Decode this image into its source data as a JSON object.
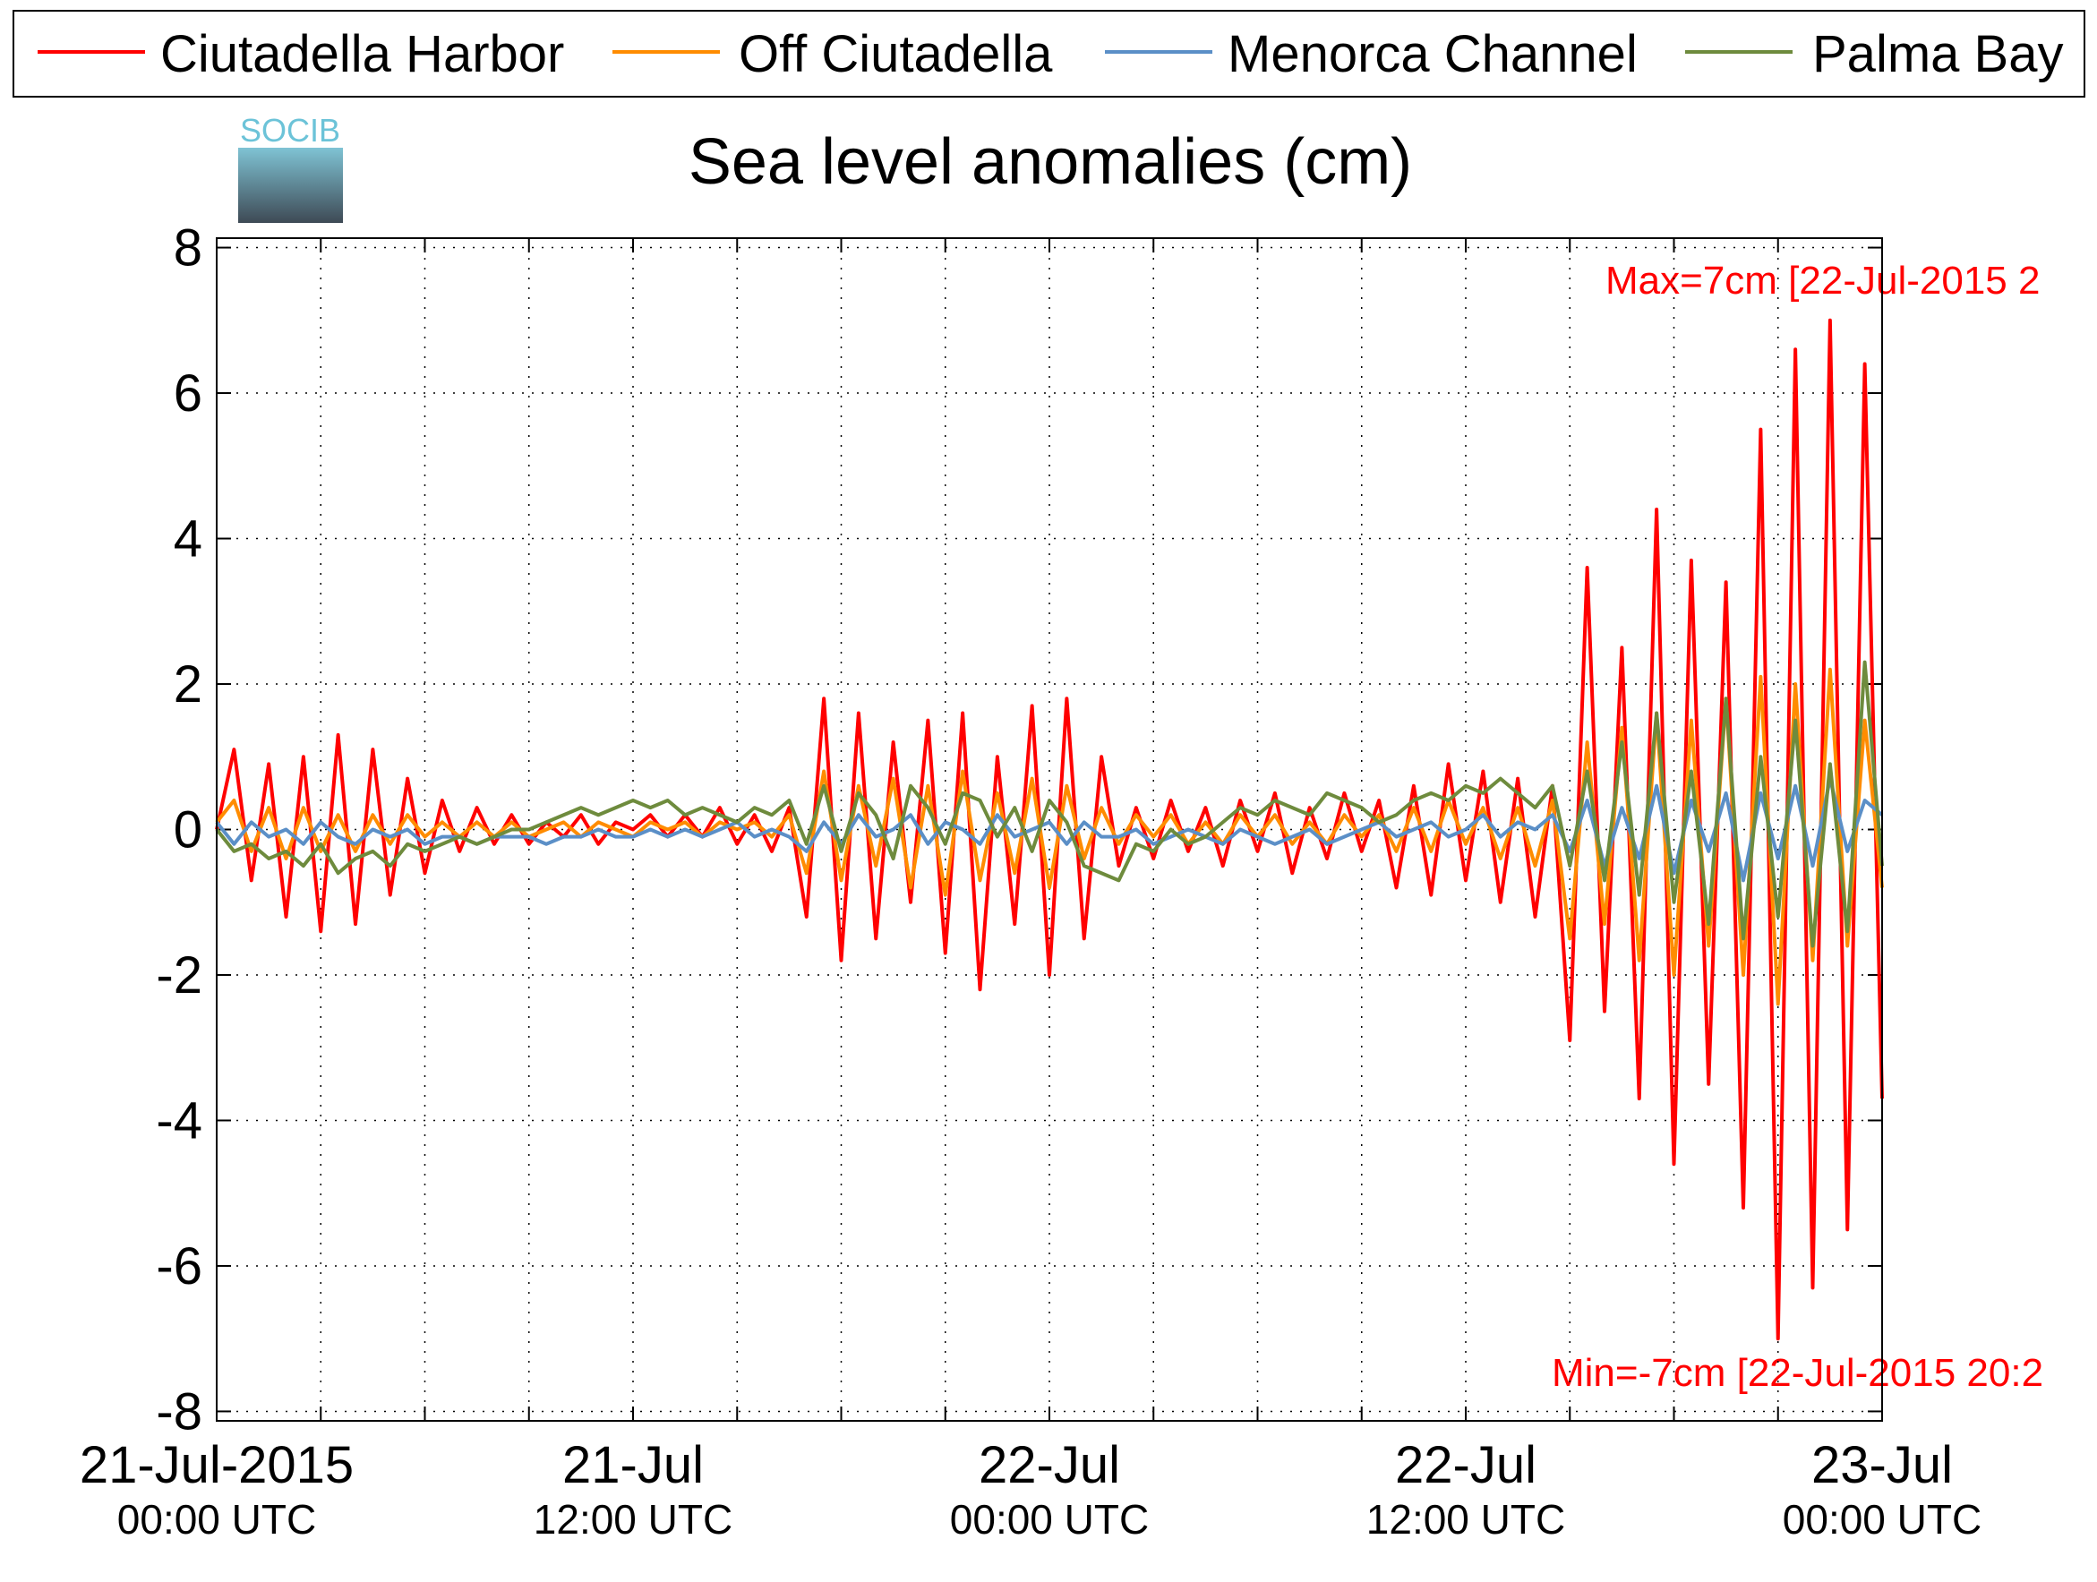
{
  "chart_data": {
    "type": "line",
    "title": "Sea level anomalies (cm)",
    "logo": "SOCIB",
    "annotations": [
      {
        "text": "Max=7cm [22-Jul-2015 2",
        "color": "#ff0000"
      },
      {
        "text": "Min=-7cm [22-Jul-2015 20:2",
        "color": "#ff0000"
      }
    ],
    "x": [
      "2015-07-21T00:00",
      "2015-07-21T00:30",
      "2015-07-21T01:00",
      "2015-07-21T01:30",
      "2015-07-21T02:00",
      "2015-07-21T02:30",
      "2015-07-21T03:00",
      "2015-07-21T03:30",
      "2015-07-21T04:00",
      "2015-07-21T04:30",
      "2015-07-21T05:00",
      "2015-07-21T05:30",
      "2015-07-21T06:00",
      "2015-07-21T06:30",
      "2015-07-21T07:00",
      "2015-07-21T07:30",
      "2015-07-21T08:00",
      "2015-07-21T08:30",
      "2015-07-21T09:00",
      "2015-07-21T09:30",
      "2015-07-21T10:00",
      "2015-07-21T10:30",
      "2015-07-21T11:00",
      "2015-07-21T11:30",
      "2015-07-21T12:00",
      "2015-07-21T12:30",
      "2015-07-21T13:00",
      "2015-07-21T13:30",
      "2015-07-21T14:00",
      "2015-07-21T14:30",
      "2015-07-21T15:00",
      "2015-07-21T15:30",
      "2015-07-21T16:00",
      "2015-07-21T16:30",
      "2015-07-21T17:00",
      "2015-07-21T17:30",
      "2015-07-21T18:00",
      "2015-07-21T18:30",
      "2015-07-21T19:00",
      "2015-07-21T19:30",
      "2015-07-21T20:00",
      "2015-07-21T20:30",
      "2015-07-21T21:00",
      "2015-07-21T21:30",
      "2015-07-21T22:00",
      "2015-07-21T22:30",
      "2015-07-21T23:00",
      "2015-07-21T23:30",
      "2015-07-22T00:00",
      "2015-07-22T00:30",
      "2015-07-22T01:00",
      "2015-07-22T01:30",
      "2015-07-22T02:00",
      "2015-07-22T02:30",
      "2015-07-22T03:00",
      "2015-07-22T03:30",
      "2015-07-22T04:00",
      "2015-07-22T04:30",
      "2015-07-22T05:00",
      "2015-07-22T05:30",
      "2015-07-22T06:00",
      "2015-07-22T06:30",
      "2015-07-22T07:00",
      "2015-07-22T07:30",
      "2015-07-22T08:00",
      "2015-07-22T08:30",
      "2015-07-22T09:00",
      "2015-07-22T09:30",
      "2015-07-22T10:00",
      "2015-07-22T10:30",
      "2015-07-22T11:00",
      "2015-07-22T11:30",
      "2015-07-22T12:00",
      "2015-07-22T12:30",
      "2015-07-22T13:00",
      "2015-07-22T13:30",
      "2015-07-22T14:00",
      "2015-07-22T14:30",
      "2015-07-22T15:00",
      "2015-07-22T15:30",
      "2015-07-22T16:00",
      "2015-07-22T16:30",
      "2015-07-22T17:00",
      "2015-07-22T17:30",
      "2015-07-22T18:00",
      "2015-07-22T18:30",
      "2015-07-22T19:00",
      "2015-07-22T19:30",
      "2015-07-22T20:00",
      "2015-07-22T20:30",
      "2015-07-22T21:00",
      "2015-07-22T21:30",
      "2015-07-22T22:00",
      "2015-07-22T22:30",
      "2015-07-22T23:00",
      "2015-07-22T23:30",
      "2015-07-23T00:00"
    ],
    "series": [
      {
        "name": "Ciutadella Harbor",
        "color": "#ff0000",
        "values": [
          0,
          1.1,
          -0.7,
          0.9,
          -1.2,
          1.0,
          -1.4,
          1.3,
          -1.3,
          1.1,
          -0.9,
          0.7,
          -0.6,
          0.4,
          -0.3,
          0.3,
          -0.2,
          0.2,
          -0.2,
          0.1,
          -0.1,
          0.2,
          -0.2,
          0.1,
          0,
          0.2,
          -0.1,
          0.2,
          -0.1,
          0.3,
          -0.2,
          0.2,
          -0.3,
          0.3,
          -1.2,
          1.8,
          -1.8,
          1.6,
          -1.5,
          1.2,
          -1.0,
          1.5,
          -1.7,
          1.6,
          -2.2,
          1.0,
          -1.3,
          1.7,
          -2.0,
          1.8,
          -1.5,
          1.0,
          -0.5,
          0.3,
          -0.4,
          0.4,
          -0.3,
          0.3,
          -0.5,
          0.4,
          -0.3,
          0.5,
          -0.6,
          0.3,
          -0.4,
          0.5,
          -0.3,
          0.4,
          -0.8,
          0.6,
          -0.9,
          0.9,
          -0.7,
          0.8,
          -1.0,
          0.7,
          -1.2,
          0.6,
          -2.9,
          3.6,
          -2.5,
          2.5,
          -3.7,
          4.4,
          -4.6,
          3.7,
          -3.5,
          3.4,
          -5.2,
          5.5,
          -7.0,
          6.6,
          -6.3,
          7.0,
          -5.5,
          6.4,
          -3.7
        ]
      },
      {
        "name": "Off Ciutadella",
        "color": "#ff8c00",
        "values": [
          0.1,
          0.4,
          -0.3,
          0.3,
          -0.4,
          0.3,
          -0.3,
          0.2,
          -0.3,
          0.2,
          -0.2,
          0.2,
          -0.1,
          0.1,
          -0.1,
          0.1,
          -0.1,
          0.1,
          -0.1,
          0,
          0.1,
          -0.1,
          0.1,
          0,
          -0.1,
          0.1,
          0,
          0.1,
          -0.1,
          0.1,
          0,
          0.1,
          -0.1,
          0.2,
          -0.6,
          0.8,
          -0.7,
          0.6,
          -0.5,
          0.7,
          -0.8,
          0.6,
          -0.9,
          0.8,
          -0.7,
          0.5,
          -0.6,
          0.7,
          -0.8,
          0.6,
          -0.4,
          0.3,
          -0.2,
          0.2,
          -0.1,
          0.2,
          -0.2,
          0.1,
          -0.2,
          0.2,
          -0.1,
          0.2,
          -0.2,
          0.1,
          -0.2,
          0.2,
          -0.1,
          0.2,
          -0.3,
          0.3,
          -0.3,
          0.4,
          -0.2,
          0.3,
          -0.4,
          0.3,
          -0.5,
          0.4,
          -1.5,
          1.2,
          -1.3,
          1.4,
          -1.8,
          1.6,
          -2.0,
          1.5,
          -1.6,
          1.8,
          -2.0,
          2.1,
          -2.4,
          2.0,
          -1.8,
          2.2,
          -1.6,
          1.5,
          -0.8
        ]
      },
      {
        "name": "Menorca Channel",
        "color": "#5b8fc7",
        "values": [
          0.1,
          -0.2,
          0.1,
          -0.1,
          0,
          -0.2,
          0.1,
          -0.1,
          -0.2,
          0,
          -0.1,
          0,
          -0.2,
          -0.1,
          -0.1,
          -0.2,
          -0.1,
          -0.1,
          -0.1,
          -0.2,
          -0.1,
          -0.1,
          0,
          -0.1,
          -0.1,
          0,
          -0.1,
          0,
          -0.1,
          0,
          0.1,
          -0.1,
          0,
          -0.1,
          -0.3,
          0.1,
          -0.2,
          0.2,
          -0.1,
          0,
          0.2,
          -0.2,
          0.1,
          0,
          -0.2,
          0.2,
          -0.1,
          0,
          0.1,
          -0.2,
          0.1,
          -0.1,
          -0.1,
          0,
          -0.2,
          -0.1,
          0,
          -0.1,
          -0.2,
          0,
          -0.1,
          -0.2,
          -0.1,
          0,
          -0.2,
          -0.1,
          0,
          0.1,
          -0.1,
          0,
          0.1,
          -0.1,
          0,
          0.2,
          -0.1,
          0.1,
          0,
          0.2,
          -0.3,
          0.4,
          -0.5,
          0.3,
          -0.4,
          0.6,
          -0.6,
          0.4,
          -0.3,
          0.5,
          -0.7,
          0.5,
          -0.4,
          0.6,
          -0.5,
          0.7,
          -0.3,
          0.4,
          0.2
        ]
      },
      {
        "name": "Palma Bay",
        "color": "#6e8b3d",
        "values": [
          0,
          -0.3,
          -0.2,
          -0.4,
          -0.3,
          -0.5,
          -0.2,
          -0.6,
          -0.4,
          -0.3,
          -0.5,
          -0.2,
          -0.3,
          -0.2,
          -0.1,
          -0.2,
          -0.1,
          0,
          0,
          0.1,
          0.2,
          0.3,
          0.2,
          0.3,
          0.4,
          0.3,
          0.4,
          0.2,
          0.3,
          0.2,
          0.1,
          0.3,
          0.2,
          0.4,
          -0.2,
          0.6,
          -0.3,
          0.5,
          0.2,
          -0.4,
          0.6,
          0.3,
          -0.2,
          0.5,
          0.4,
          -0.1,
          0.3,
          -0.3,
          0.4,
          0.1,
          -0.5,
          -0.6,
          -0.7,
          -0.2,
          -0.3,
          0,
          -0.2,
          -0.1,
          0.1,
          0.3,
          0.2,
          0.4,
          0.3,
          0.2,
          0.5,
          0.4,
          0.3,
          0.1,
          0.2,
          0.4,
          0.5,
          0.4,
          0.6,
          0.5,
          0.7,
          0.5,
          0.3,
          0.6,
          -0.5,
          0.8,
          -0.7,
          1.2,
          -0.9,
          1.6,
          -1.0,
          0.8,
          -1.3,
          1.8,
          -1.5,
          1.0,
          -1.2,
          1.5,
          -1.6,
          0.9,
          -1.4,
          2.3,
          -0.5
        ]
      }
    ],
    "xlim": [
      "2015-07-21T00:00",
      "2015-07-23T00:00"
    ],
    "xticks": [
      {
        "value": "2015-07-21T00:00",
        "label": [
          "21-Jul-2015",
          "00:00 UTC"
        ]
      },
      {
        "value": "2015-07-21T12:00",
        "label": [
          "21-Jul",
          "12:00 UTC"
        ]
      },
      {
        "value": "2015-07-22T00:00",
        "label": [
          "22-Jul",
          "00:00 UTC"
        ]
      },
      {
        "value": "2015-07-22T12:00",
        "label": [
          "22-Jul",
          "12:00 UTC"
        ]
      },
      {
        "value": "2015-07-23T00:00",
        "label": [
          "23-Jul",
          "00:00 UTC"
        ]
      }
    ],
    "xminor_ticks": [
      "2015-07-21T03:00",
      "2015-07-21T06:00",
      "2015-07-21T09:00",
      "2015-07-21T15:00",
      "2015-07-21T18:00",
      "2015-07-21T21:00",
      "2015-07-22T03:00",
      "2015-07-22T06:00",
      "2015-07-22T09:00",
      "2015-07-22T15:00",
      "2015-07-22T18:00",
      "2015-07-22T21:00"
    ],
    "ylim": [
      -8.13,
      8.13
    ],
    "yticks": [
      -8,
      -6,
      -4,
      -2,
      0,
      2,
      4,
      6,
      8
    ],
    "grid": true,
    "legend": "top"
  }
}
